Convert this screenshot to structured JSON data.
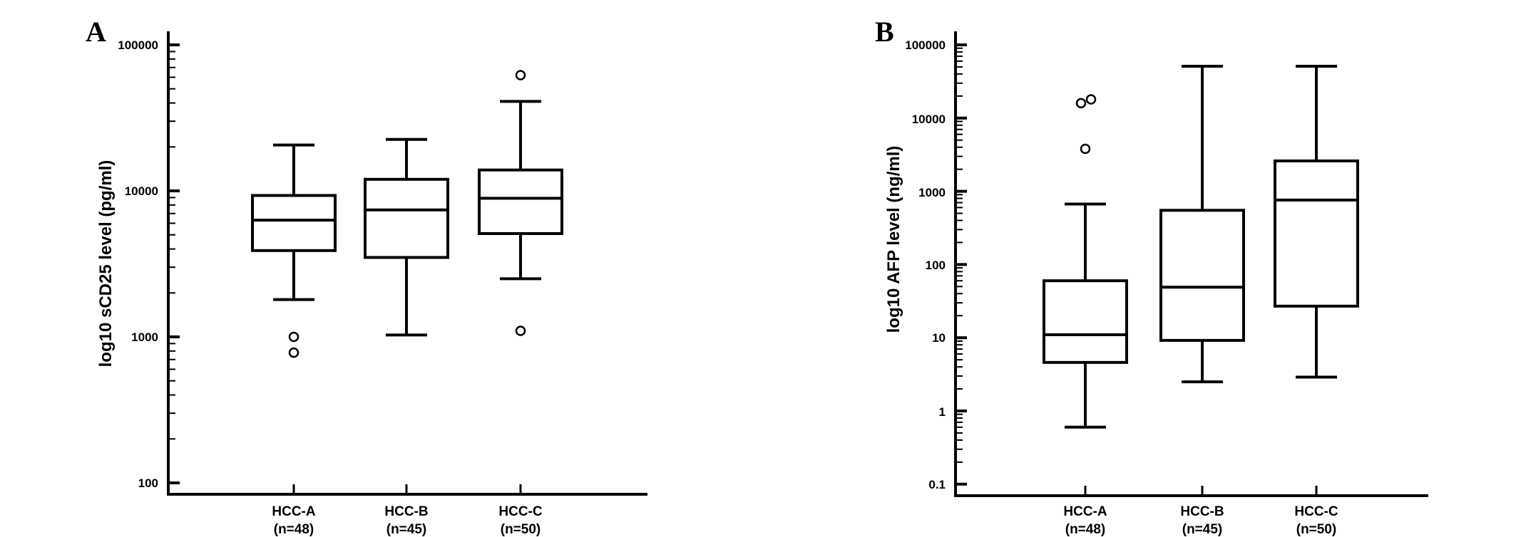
{
  "figure": {
    "panels": [
      {
        "letter": "A",
        "ylabel": "log10 sCD25 level (pg/ml)",
        "yticks": [
          "100000",
          "10000",
          "1000",
          "100"
        ],
        "categories": [
          "HCC-A",
          "HCC-B",
          "HCC-C"
        ],
        "n_labels": [
          "(n=48)",
          "(n=45)",
          "(n=50)"
        ]
      },
      {
        "letter": "B",
        "ylabel": "log10 AFP level (ng/ml)",
        "yticks": [
          "100000",
          "10000",
          "1000",
          "100",
          "10",
          "1",
          "0.1"
        ],
        "categories": [
          "HCC-A",
          "HCC-B",
          "HCC-C"
        ],
        "n_labels": [
          "(n=48)",
          "(n=45)",
          "(n=50)"
        ]
      }
    ],
    "colors": {
      "line": "#000000",
      "background": "#ffffff"
    }
  },
  "chart_data": [
    {
      "type": "box",
      "panel": "A",
      "title": "",
      "xlabel": "",
      "ylabel": "log10 sCD25 level (pg/ml)",
      "yscale": "log",
      "ylim": [
        100,
        100000
      ],
      "yticks": [
        100,
        1000,
        10000,
        100000
      ],
      "grid": false,
      "categories": [
        "HCC-A (n=48)",
        "HCC-B (n=45)",
        "HCC-C (n=50)"
      ],
      "series": [
        {
          "name": "HCC-A",
          "n": 48,
          "whisker_low": 1800,
          "q1": 3900,
          "median": 6300,
          "q3": 9300,
          "whisker_high": 20600,
          "outliers": [
            1000,
            780
          ]
        },
        {
          "name": "HCC-B",
          "n": 45,
          "whisker_low": 1030,
          "q1": 3500,
          "median": 7400,
          "q3": 12000,
          "whisker_high": 22500,
          "outliers": []
        },
        {
          "name": "HCC-C",
          "n": 50,
          "whisker_low": 2500,
          "q1": 5100,
          "median": 8900,
          "q3": 13900,
          "whisker_high": 41000,
          "outliers": [
            62000,
            1100
          ]
        }
      ]
    },
    {
      "type": "box",
      "panel": "B",
      "title": "",
      "xlabel": "",
      "ylabel": "log10 AFP level (ng/ml)",
      "yscale": "log",
      "ylim": [
        0.1,
        100000
      ],
      "yticks": [
        0.1,
        1,
        10,
        100,
        1000,
        10000,
        100000
      ],
      "grid": false,
      "categories": [
        "HCC-A (n=48)",
        "HCC-B (n=45)",
        "HCC-C (n=50)"
      ],
      "series": [
        {
          "name": "HCC-A",
          "n": 48,
          "whisker_low": 0.6,
          "q1": 4.6,
          "median": 11,
          "q3": 60,
          "whisker_high": 670,
          "outliers": [
            18000,
            16000,
            3800
          ]
        },
        {
          "name": "HCC-B",
          "n": 45,
          "whisker_low": 2.5,
          "q1": 9.2,
          "median": 49,
          "q3": 550,
          "whisker_high": 51000,
          "outliers": []
        },
        {
          "name": "HCC-C",
          "n": 50,
          "whisker_low": 2.9,
          "q1": 27,
          "median": 760,
          "q3": 2600,
          "whisker_high": 51000,
          "outliers": []
        }
      ]
    }
  ]
}
